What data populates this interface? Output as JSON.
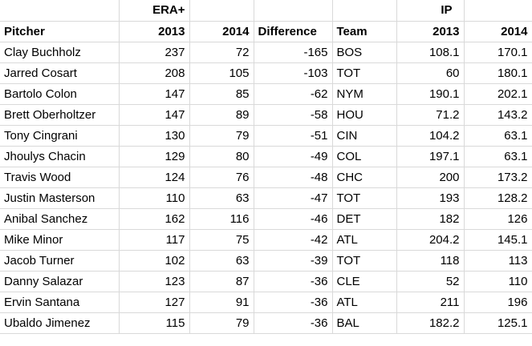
{
  "header": {
    "groups": {
      "era": "ERA+",
      "ip": "IP"
    },
    "columns": [
      "Pitcher",
      "2013",
      "2014",
      "Difference",
      "Team",
      "2013",
      "2014"
    ]
  },
  "table": {
    "rows": [
      [
        "Clay Buchholz",
        237,
        72,
        -165,
        "BOS",
        108.1,
        170.1
      ],
      [
        "Jarred Cosart",
        208,
        105,
        -103,
        "TOT",
        60,
        180.1
      ],
      [
        "Bartolo Colon",
        147,
        85,
        -62,
        "NYM",
        190.1,
        202.1
      ],
      [
        "Brett Oberholtzer",
        147,
        89,
        -58,
        "HOU",
        71.2,
        143.2
      ],
      [
        "Tony Cingrani",
        130,
        79,
        -51,
        "CIN",
        104.2,
        63.1
      ],
      [
        "Jhoulys Chacin",
        129,
        80,
        -49,
        "COL",
        197.1,
        63.1
      ],
      [
        "Travis Wood",
        124,
        76,
        -48,
        "CHC",
        200,
        173.2
      ],
      [
        "Justin Masterson",
        110,
        63,
        -47,
        "TOT",
        193,
        128.2
      ],
      [
        "Anibal Sanchez",
        162,
        116,
        -46,
        "DET",
        182,
        126
      ],
      [
        "Mike Minor",
        117,
        75,
        -42,
        "ATL",
        204.2,
        145.1
      ],
      [
        "Jacob Turner",
        102,
        63,
        -39,
        "TOT",
        118,
        113
      ],
      [
        "Danny Salazar",
        123,
        87,
        -36,
        "CLE",
        52,
        110
      ],
      [
        "Ervin Santana",
        127,
        91,
        -36,
        "ATL",
        211,
        196
      ],
      [
        "Ubaldo Jimenez",
        115,
        79,
        -36,
        "BAL",
        182.2,
        125.1
      ]
    ]
  }
}
